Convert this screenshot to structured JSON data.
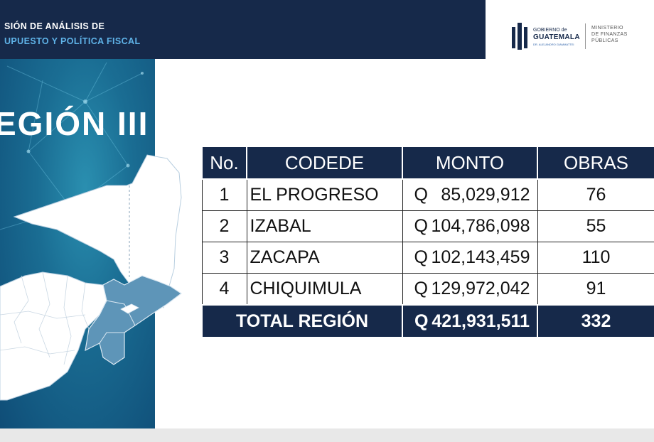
{
  "header": {
    "line1": "SIÓN DE ANÁLISIS DE",
    "line2": "UPUESTO Y POLÍTICA FISCAL"
  },
  "logo": {
    "gov_small": "GOBIERNO de",
    "gov_big": "GUATEMALA",
    "gov_tiny": "DR. ALEJANDRO GIAMMATTEI",
    "ministry_1": "MINISTERIO",
    "ministry_2": "DE FINANZAS",
    "ministry_3": "PÚBLICAS"
  },
  "region_title": "EGIÓN III",
  "table": {
    "headers": [
      "No.",
      "CODEDE",
      "MONTO",
      "OBRAS"
    ],
    "rows": [
      {
        "no": "1",
        "name": "EL PROGRESO",
        "currency": "Q",
        "amount": "85,029,912",
        "obras": "76"
      },
      {
        "no": "2",
        "name": "IZABAL",
        "currency": "Q",
        "amount": "104,786,098",
        "obras": "55"
      },
      {
        "no": "3",
        "name": "ZACAPA",
        "currency": "Q",
        "amount": "102,143,459",
        "obras": "110"
      },
      {
        "no": "4",
        "name": "CHIQUIMULA",
        "currency": "Q",
        "amount": "129,972,042",
        "obras": "91"
      }
    ],
    "total": {
      "label": "TOTAL REGIÓN",
      "currency": "Q",
      "amount": "421,931,511",
      "obras": "332"
    }
  },
  "colors": {
    "navy": "#16294a",
    "accent_blue": "#5fb3e8",
    "region_fill": "#5e95b8"
  }
}
